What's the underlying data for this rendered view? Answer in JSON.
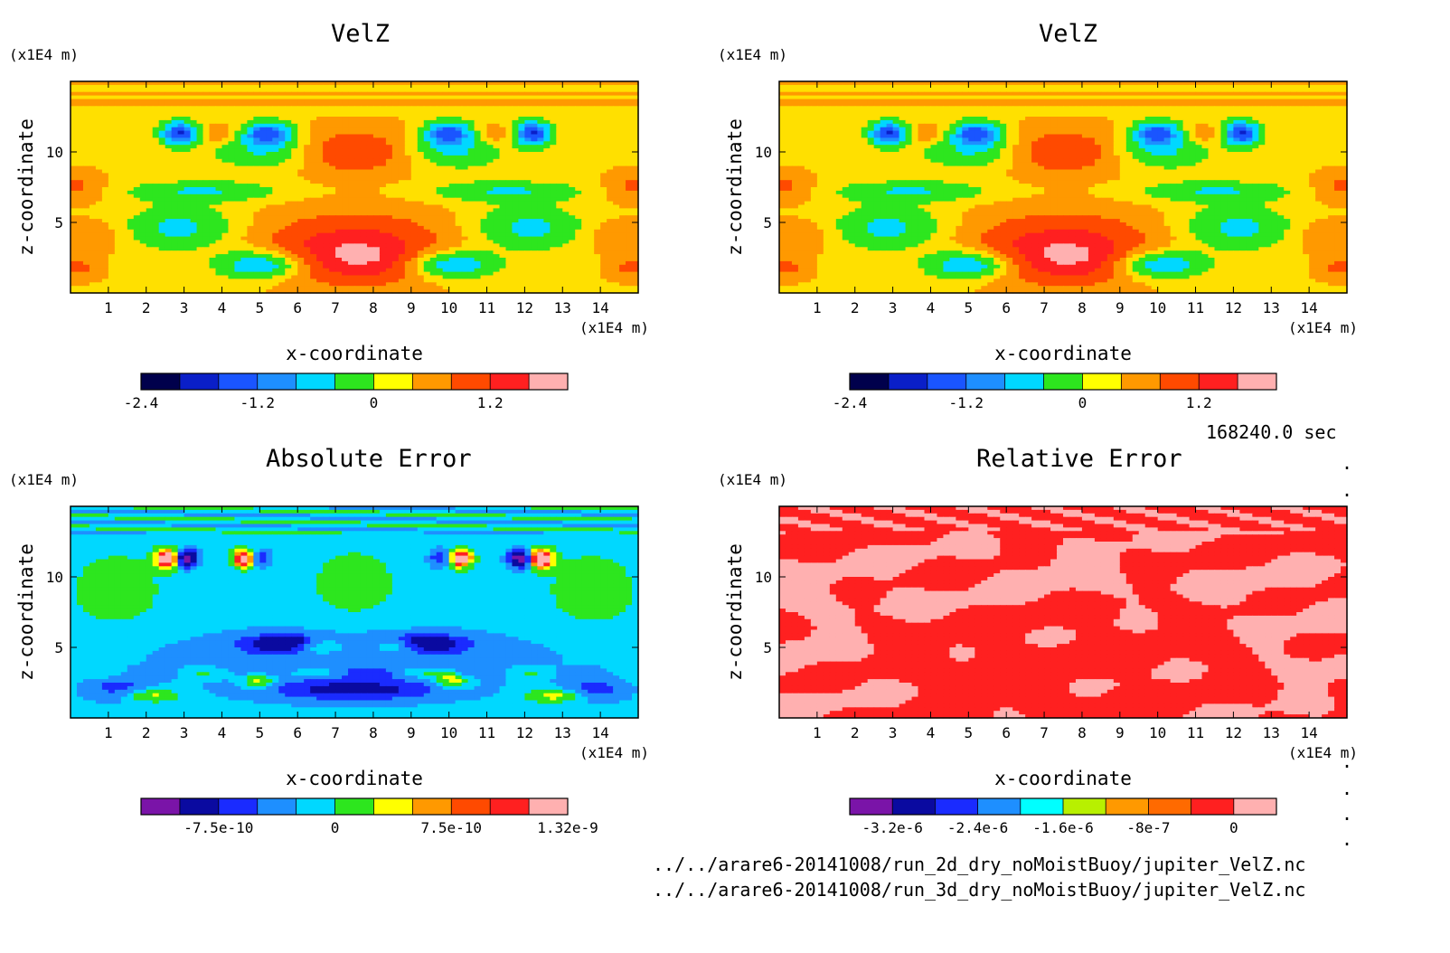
{
  "info": {
    "time": "168240.0 sec",
    "files": [
      "../../arare6-20141008/run_2d_dry_noMoistBuoy/jupiter_VelZ.nc",
      "../../arare6-20141008/run_3d_dry_noMoistBuoy/jupiter_VelZ.nc"
    ]
  },
  "chart_data": [
    {
      "type": "heatmap",
      "title": "VelZ",
      "xlabel": "x-coordinate",
      "ylabel": "z-coordinate",
      "x_unit": "(x1E4 m)",
      "y_unit": "(x1E4 m)",
      "xlim": [
        0,
        15
      ],
      "ylim": [
        0,
        15
      ],
      "x_ticks": [
        1,
        2,
        3,
        4,
        5,
        6,
        7,
        8,
        9,
        10,
        11,
        12,
        13,
        14
      ],
      "y_ticks": [
        5,
        10
      ],
      "colorbar": {
        "colors": [
          "#00004c",
          "#0a1fc8",
          "#1a55ff",
          "#1e8fff",
          "#00d8ff",
          "#2de61e",
          "#ffff00",
          "#ff9900",
          "#ff4a00",
          "#ff2020",
          "#ffb0b0"
        ],
        "ticks": [
          "-2.4",
          "-1.2",
          "0",
          "1.2"
        ],
        "tick_index": [
          0,
          3,
          6,
          9
        ]
      },
      "palette": [
        "#ffe000",
        "#ff9900",
        "#2de61e",
        "#ff4a00",
        "#ff2020",
        "#00d8ff",
        "#1e8fff",
        "#1a55ff",
        "#0a1fc8",
        "#ffb0b0"
      ]
    },
    {
      "type": "heatmap",
      "title": "VelZ",
      "xlabel": "x-coordinate",
      "ylabel": "z-coordinate",
      "x_unit": "(x1E4 m)",
      "y_unit": "(x1E4 m)",
      "xlim": [
        0,
        15
      ],
      "ylim": [
        0,
        15
      ],
      "x_ticks": [
        1,
        2,
        3,
        4,
        5,
        6,
        7,
        8,
        9,
        10,
        11,
        12,
        13,
        14
      ],
      "y_ticks": [
        5,
        10
      ],
      "colorbar": {
        "colors": [
          "#00004c",
          "#0a1fc8",
          "#1a55ff",
          "#1e8fff",
          "#00d8ff",
          "#2de61e",
          "#ffff00",
          "#ff9900",
          "#ff4a00",
          "#ff2020",
          "#ffb0b0"
        ],
        "ticks": [
          "-2.4",
          "-1.2",
          "0",
          "1.2"
        ],
        "tick_index": [
          0,
          3,
          6,
          9
        ]
      },
      "palette": [
        "#ffe000",
        "#ff9900",
        "#2de61e",
        "#ff4a00",
        "#ff2020",
        "#00d8ff",
        "#1e8fff",
        "#1a55ff",
        "#0a1fc8",
        "#ffb0b0"
      ]
    },
    {
      "type": "heatmap",
      "title": "Absolute Error",
      "xlabel": "x-coordinate",
      "ylabel": "z-coordinate",
      "x_unit": "(x1E4 m)",
      "y_unit": "(x1E4 m)",
      "xlim": [
        0,
        15
      ],
      "ylim": [
        0,
        15
      ],
      "x_ticks": [
        1,
        2,
        3,
        4,
        5,
        6,
        7,
        8,
        9,
        10,
        11,
        12,
        13,
        14
      ],
      "y_ticks": [
        5,
        10
      ],
      "colorbar": {
        "colors": [
          "#7a14a8",
          "#0a0aa0",
          "#1a2bff",
          "#1e8fff",
          "#00d8ff",
          "#2de61e",
          "#ffff00",
          "#ff9900",
          "#ff4a00",
          "#ff2020",
          "#ffb0b0"
        ],
        "ticks": [
          "-7.5e-10",
          "0",
          "7.5e-10",
          "1.32e-9"
        ],
        "tick_index": [
          2,
          5,
          8,
          11
        ]
      },
      "palette": [
        "#00d8ff",
        "#2de61e",
        "#1e8fff",
        "#1a2bff",
        "#0a0aa0",
        "#ffff00",
        "#ff9900",
        "#ff2020",
        "#ffe000",
        "#7a14a8"
      ]
    },
    {
      "type": "heatmap",
      "title": "Relative Error",
      "xlabel": "x-coordinate",
      "ylabel": "z-coordinate",
      "x_unit": "(x1E4 m)",
      "y_unit": "(x1E4 m)",
      "xlim": [
        0,
        15
      ],
      "ylim": [
        0,
        15
      ],
      "x_ticks": [
        1,
        2,
        3,
        4,
        5,
        6,
        7,
        8,
        9,
        10,
        11,
        12,
        13,
        14
      ],
      "y_ticks": [
        5,
        10
      ],
      "colorbar": {
        "colors": [
          "#7a14a8",
          "#0a0aa0",
          "#1a2bff",
          "#1e8fff",
          "#00ffff",
          "#b8f000",
          "#ff9900",
          "#ff6a00",
          "#ff2020",
          "#ffb0b0"
        ],
        "ticks": [
          "-3.2e-6",
          "-2.4e-6",
          "-1.6e-6",
          "-8e-7",
          "0"
        ],
        "tick_index": [
          1,
          3,
          5,
          7,
          9
        ]
      },
      "palette": [
        "#ff2020",
        "#ffb0b0"
      ]
    }
  ]
}
